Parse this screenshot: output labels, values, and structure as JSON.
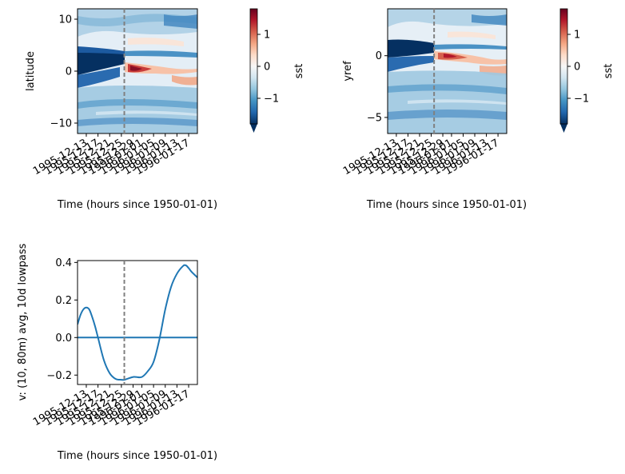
{
  "chart_data": [
    {
      "type": "heatmap",
      "xlabel": "Time (hours since 1950-01-01)",
      "ylabel": "latitude",
      "yticks": [
        -10,
        0,
        10
      ],
      "ylim": [
        -12,
        12
      ],
      "xticks": [
        "1995-12-13",
        "1995-12-17",
        "1995-12-21",
        "1995-12-25",
        "1995-12-29",
        "1996-01-01",
        "1996-01-05",
        "1996-01-09",
        "1996-01-13",
        "1996-01-17"
      ],
      "xlim": [
        "1995-12-10",
        "1996-01-20"
      ],
      "event_date": "1995-12-26",
      "colorbar": {
        "label": "sst",
        "ticks": [
          -1,
          0,
          1
        ],
        "range": [
          -1.8,
          1.8
        ],
        "cmap": "RdBu_r"
      }
    },
    {
      "type": "heatmap",
      "xlabel": "Time (hours since 1950-01-01)",
      "ylabel": "yref",
      "yticks": [
        -5,
        0
      ],
      "ylim": [
        -6.3,
        3.8
      ],
      "xticks": [
        "1995-12-13",
        "1995-12-17",
        "1995-12-21",
        "1995-12-25",
        "1995-12-29",
        "1996-01-01",
        "1996-01-05",
        "1996-01-09",
        "1996-01-13",
        "1996-01-17"
      ],
      "xlim": [
        "1995-12-10",
        "1996-01-20"
      ],
      "event_date": "1995-12-26",
      "colorbar": {
        "label": "sst",
        "ticks": [
          -1,
          0,
          1
        ],
        "range": [
          -1.8,
          1.8
        ],
        "cmap": "RdBu_r"
      }
    },
    {
      "type": "line",
      "xlabel": "Time (hours since 1950-01-01)",
      "ylabel": "v: (10, 80m) avg, 10d lowpass",
      "yticks": [
        -0.2,
        0.0,
        0.2,
        0.4
      ],
      "ylim": [
        -0.25,
        0.41
      ],
      "xticks": [
        "1995-12-13",
        "1995-12-17",
        "1995-12-21",
        "1995-12-25",
        "1995-12-29",
        "1996-01-01",
        "1996-01-05",
        "1996-01-09",
        "1996-01-13",
        "1996-01-17"
      ],
      "xlim": [
        "1995-12-10",
        "1996-01-20"
      ],
      "event_date": "1995-12-26",
      "hline": 0,
      "series": [
        {
          "x": [
            "1995-12-10",
            "1995-12-11",
            "1995-12-12",
            "1995-12-13",
            "1995-12-14",
            "1995-12-15",
            "1995-12-16",
            "1995-12-17",
            "1995-12-19",
            "1995-12-21",
            "1995-12-23",
            "1995-12-25",
            "1995-12-26",
            "1995-12-27",
            "1995-12-29",
            "1995-12-30",
            "1996-01-01",
            "1996-01-03",
            "1996-01-05",
            "1996-01-07",
            "1996-01-09",
            "1996-01-11",
            "1996-01-13",
            "1996-01-15",
            "1996-01-16",
            "1996-01-17",
            "1996-01-18",
            "1996-01-20"
          ],
          "y": [
            0.07,
            0.12,
            0.15,
            0.16,
            0.15,
            0.11,
            0.06,
            0.0,
            -0.12,
            -0.19,
            -0.22,
            -0.225,
            -0.225,
            -0.22,
            -0.21,
            -0.21,
            -0.21,
            -0.18,
            -0.13,
            -0.01,
            0.15,
            0.27,
            0.34,
            0.38,
            0.385,
            0.37,
            0.35,
            0.32
          ]
        }
      ]
    }
  ]
}
